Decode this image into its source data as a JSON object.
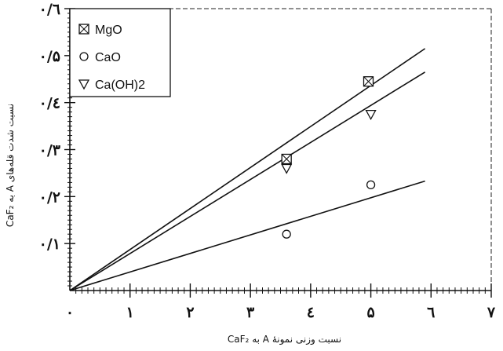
{
  "chart_data": {
    "type": "scatter",
    "xlabel": "نسبت وزنی نمونهٔ A به CaF₂",
    "ylabel": "نسبت شدت قله‌های A به CaF₂",
    "xlim": [
      0,
      7
    ],
    "ylim": [
      0,
      0.6
    ],
    "x_ticks": [
      {
        "value": 0,
        "label": "۰"
      },
      {
        "value": 1,
        "label": "۱"
      },
      {
        "value": 2,
        "label": "۲"
      },
      {
        "value": 3,
        "label": "۳"
      },
      {
        "value": 4,
        "label": "٤"
      },
      {
        "value": 5,
        "label": "۵"
      },
      {
        "value": 6,
        "label": "٦"
      },
      {
        "value": 7,
        "label": "۷"
      }
    ],
    "y_ticks": [
      {
        "value": 0.1,
        "label": "۰/۱"
      },
      {
        "value": 0.2,
        "label": "۰/۲"
      },
      {
        "value": 0.3,
        "label": "۰/۳"
      },
      {
        "value": 0.4,
        "label": "۰/٤"
      },
      {
        "value": 0.5,
        "label": "۰/۵"
      },
      {
        "value": 0.6,
        "label": "۰/٦"
      }
    ],
    "grid": false,
    "legend_position": "top-left",
    "series": [
      {
        "name": "MgO",
        "marker": "boxed-x",
        "x": [
          3.6,
          4.96
        ],
        "y": [
          0.28,
          0.445
        ],
        "fit": {
          "x": [
            0,
            5.9
          ],
          "y": [
            0,
            0.515
          ]
        }
      },
      {
        "name": "CaO",
        "marker": "circle",
        "x": [
          3.6,
          5.0
        ],
        "y": [
          0.12,
          0.225
        ],
        "fit": {
          "x": [
            0,
            5.9
          ],
          "y": [
            0,
            0.233
          ]
        }
      },
      {
        "name": "Ca(OH)2",
        "marker": "triangle-down",
        "x": [
          3.6,
          5.0
        ],
        "y": [
          0.26,
          0.375
        ],
        "fit": {
          "x": [
            0,
            5.9
          ],
          "y": [
            0,
            0.465
          ]
        }
      }
    ]
  }
}
